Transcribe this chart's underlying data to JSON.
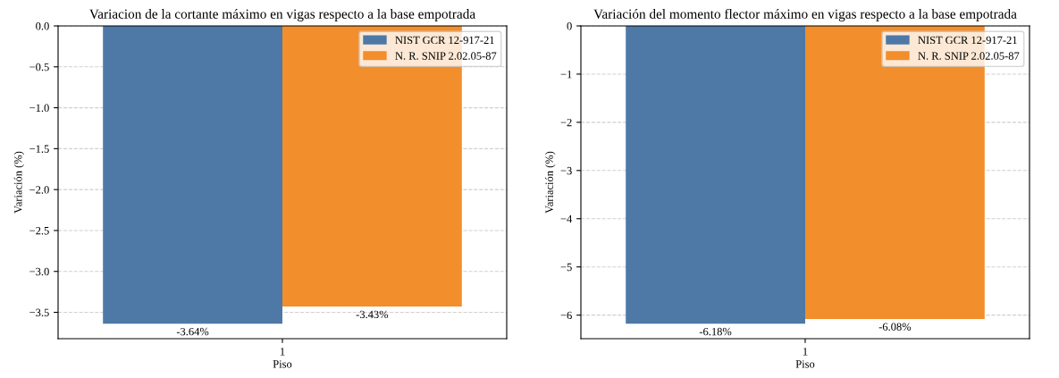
{
  "chart_data": [
    {
      "type": "bar",
      "title": "Variacion de la cortante máximo en vigas respecto a la base empotrada",
      "xlabel": "Piso",
      "ylabel": "Variación (%)",
      "categories": [
        "1"
      ],
      "series": [
        {
          "name": "NIST GCR 12-917-21",
          "color": "#4e79a7",
          "values": [
            -3.64
          ],
          "value_labels": [
            "-3.64%"
          ]
        },
        {
          "name": "N. R. SNIP 2.02.05-87",
          "color": "#f28e2b",
          "values": [
            -3.43
          ],
          "value_labels": [
            "-3.43%"
          ]
        }
      ],
      "ylim": [
        -3.822,
        0
      ],
      "yticks": [
        {
          "value": 0,
          "label": "0.0"
        },
        {
          "value": -0.5,
          "label": "−0.5"
        },
        {
          "value": -1.0,
          "label": "−1.0"
        },
        {
          "value": -1.5,
          "label": "−1.5"
        },
        {
          "value": -2.0,
          "label": "−2.0"
        },
        {
          "value": -2.5,
          "label": "−2.5"
        },
        {
          "value": -3.0,
          "label": "−3.0"
        },
        {
          "value": -3.5,
          "label": "−3.5"
        }
      ],
      "grid": "y",
      "legend": "top right"
    },
    {
      "type": "bar",
      "title": "Variación del momento flector máximo en vigas respecto a la base empotrada",
      "xlabel": "Piso",
      "ylabel": "Variación (%)",
      "categories": [
        "1"
      ],
      "series": [
        {
          "name": "NIST GCR 12-917-21",
          "color": "#4e79a7",
          "values": [
            -6.18
          ],
          "value_labels": [
            "-6.18%"
          ]
        },
        {
          "name": "N. R. SNIP 2.02.05-87",
          "color": "#f28e2b",
          "values": [
            -6.08
          ],
          "value_labels": [
            "-6.08%"
          ]
        }
      ],
      "ylim": [
        -6.489,
        0
      ],
      "yticks": [
        0,
        {
          "value": -1,
          "label": "−1"
        },
        {
          "value": -2,
          "label": "−2"
        },
        {
          "value": -3,
          "label": "−3"
        },
        {
          "value": -4,
          "label": "−4"
        },
        {
          "value": -5,
          "label": "−5"
        },
        {
          "value": -6,
          "label": "−6"
        }
      ],
      "grid": "y",
      "legend": "top right"
    }
  ]
}
